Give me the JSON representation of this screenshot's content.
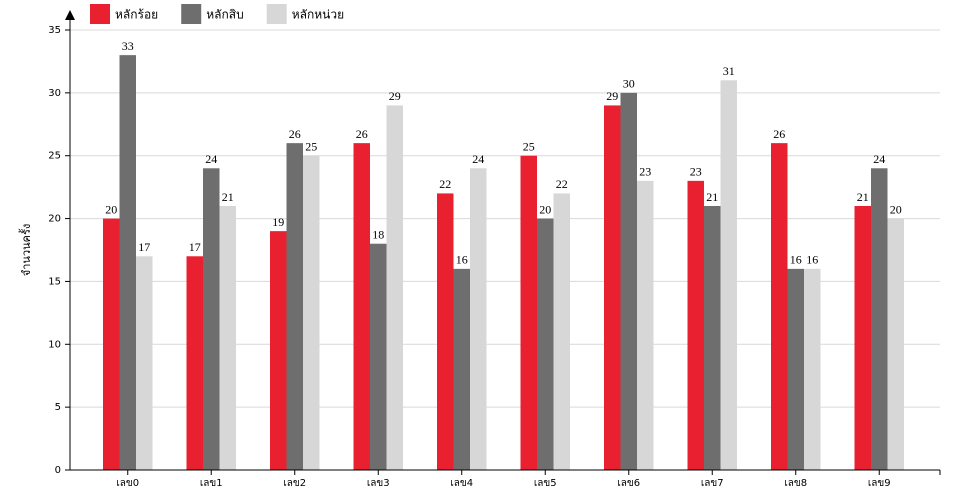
{
  "chart_data": {
    "type": "bar",
    "y_label": "จำนวนครั้ง",
    "categories": [
      "เลข0",
      "เลข1",
      "เลข2",
      "เลข3",
      "เลข4",
      "เลข5",
      "เลข6",
      "เลข7",
      "เลข8",
      "เลข9"
    ],
    "series": [
      {
        "name": "หลักร้อย",
        "color": "#e8202f",
        "values": [
          20,
          17,
          19,
          26,
          22,
          25,
          29,
          23,
          26,
          21
        ]
      },
      {
        "name": "หลักสิบ",
        "color": "#6e6e6e",
        "values": [
          33,
          24,
          26,
          18,
          16,
          20,
          30,
          21,
          16,
          24
        ]
      },
      {
        "name": "หลักหน่วย",
        "color": "#d7d7d7",
        "values": [
          17,
          21,
          25,
          29,
          24,
          22,
          23,
          31,
          16,
          20
        ]
      }
    ],
    "ylim": [
      0,
      35
    ],
    "yticks": [
      0,
      5,
      10,
      15,
      20,
      25,
      30,
      35
    ],
    "grid": true
  }
}
